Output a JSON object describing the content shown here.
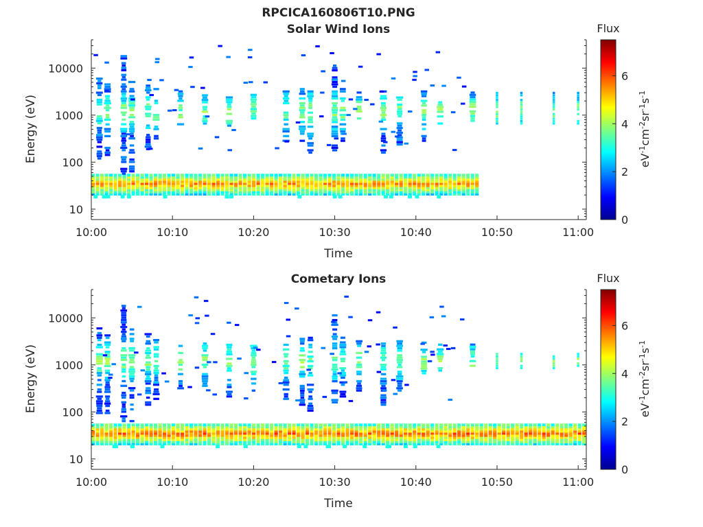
{
  "figure_title": "RPCICA160806T10.PNG",
  "chart_data": [
    {
      "type": "heatmap",
      "title": "Solar Wind Ions",
      "xlabel": "Time",
      "ylabel": "Energy (eV)",
      "x_ticks": [
        "10:00",
        "10:10",
        "10:20",
        "10:30",
        "10:40",
        "10:50",
        "11:00"
      ],
      "y_ticks": [
        "10",
        "100",
        "1000",
        "10000"
      ],
      "y_scale": "log",
      "y_range_eV": [
        6,
        40000
      ],
      "x_range": [
        "10:00",
        "11:01"
      ],
      "colorbar": {
        "title": "Flux",
        "unit": "eV⁻¹cm⁻²sr⁻¹s⁻¹",
        "ticks": [
          "0",
          "2",
          "4",
          "6"
        ],
        "range": [
          0,
          7.5
        ],
        "colormap": "jet"
      },
      "features": {
        "low_energy_band_eV": [
          25,
          55
        ],
        "low_energy_band_flux": 5.5,
        "bursts": [
          {
            "t": "10:01",
            "top": 7000,
            "bottom": 100
          },
          {
            "t": "10:02",
            "top": 5000,
            "bottom": 150
          },
          {
            "t": "10:04",
            "top": 20000,
            "bottom": 60
          },
          {
            "t": "10:05",
            "top": 6000,
            "bottom": 60
          },
          {
            "t": "10:07",
            "top": 5000,
            "bottom": 200
          },
          {
            "t": "10:08",
            "top": 4000,
            "bottom": 300
          },
          {
            "t": "10:11",
            "top": 3500,
            "bottom": 600
          },
          {
            "t": "10:14",
            "top": 3000,
            "bottom": 700
          },
          {
            "t": "10:17",
            "top": 3000,
            "bottom": 500
          },
          {
            "t": "10:20",
            "top": 3000,
            "bottom": 800
          },
          {
            "t": "10:24",
            "top": 3500,
            "bottom": 300
          },
          {
            "t": "10:26",
            "top": 4000,
            "bottom": 300
          },
          {
            "t": "10:27",
            "top": 4000,
            "bottom": 150
          },
          {
            "t": "10:30",
            "top": 12000,
            "bottom": 150
          },
          {
            "t": "10:31",
            "top": 4000,
            "bottom": 300
          },
          {
            "t": "10:33",
            "top": 3500,
            "bottom": 800
          },
          {
            "t": "10:36",
            "top": 3500,
            "bottom": 150
          },
          {
            "t": "10:38",
            "top": 3500,
            "bottom": 250
          },
          {
            "t": "10:41",
            "top": 3500,
            "bottom": 300
          },
          {
            "t": "10:43",
            "top": 3000,
            "bottom": 700
          },
          {
            "t": "10:47",
            "top": 3500,
            "bottom": 800
          },
          {
            "t": "10:50",
            "top": 3500,
            "bottom": 700
          },
          {
            "t": "10:53",
            "top": 3500,
            "bottom": 700
          },
          {
            "t": "10:57",
            "top": 3500,
            "bottom": 700
          },
          {
            "t": "11:00",
            "top": 3500,
            "bottom": 700
          }
        ]
      }
    },
    {
      "type": "heatmap",
      "title": "Cometary Ions",
      "xlabel": "Time",
      "ylabel": "Energy (eV)",
      "x_ticks": [
        "10:00",
        "10:10",
        "10:20",
        "10:30",
        "10:40",
        "10:50",
        "11:00"
      ],
      "y_ticks": [
        "10",
        "100",
        "1000",
        "10000"
      ],
      "y_scale": "log",
      "y_range_eV": [
        6,
        40000
      ],
      "x_range": [
        "10:00",
        "11:01"
      ],
      "colorbar": {
        "title": "Flux",
        "unit": "eV⁻¹cm⁻²sr⁻¹s⁻¹",
        "ticks": [
          "0",
          "2",
          "4",
          "6"
        ],
        "range": [
          0,
          7.5
        ],
        "colormap": "jet"
      },
      "features": {
        "low_energy_band_eV": [
          25,
          55
        ],
        "low_energy_band_flux": 5.8,
        "bursts": [
          {
            "t": "10:01",
            "top": 7000,
            "bottom": 100
          },
          {
            "t": "10:02",
            "top": 5000,
            "bottom": 100
          },
          {
            "t": "10:04",
            "top": 20000,
            "bottom": 60
          },
          {
            "t": "10:05",
            "top": 6000,
            "bottom": 60
          },
          {
            "t": "10:07",
            "top": 5000,
            "bottom": 150
          },
          {
            "t": "10:08",
            "top": 4000,
            "bottom": 200
          },
          {
            "t": "10:11",
            "top": 3500,
            "bottom": 300
          },
          {
            "t": "10:14",
            "top": 3000,
            "bottom": 300
          },
          {
            "t": "10:17",
            "top": 3000,
            "bottom": 200
          },
          {
            "t": "10:20",
            "top": 3000,
            "bottom": 300
          },
          {
            "t": "10:24",
            "top": 3500,
            "bottom": 200
          },
          {
            "t": "10:26",
            "top": 4000,
            "bottom": 150
          },
          {
            "t": "10:27",
            "top": 4000,
            "bottom": 100
          },
          {
            "t": "10:30",
            "top": 12000,
            "bottom": 150
          },
          {
            "t": "10:31",
            "top": 4000,
            "bottom": 200
          },
          {
            "t": "10:33",
            "top": 3500,
            "bottom": 300
          },
          {
            "t": "10:36",
            "top": 3500,
            "bottom": 150
          },
          {
            "t": "10:38",
            "top": 3500,
            "bottom": 300
          },
          {
            "t": "10:41",
            "top": 3500,
            "bottom": 700
          },
          {
            "t": "10:43",
            "top": 3000,
            "bottom": 800
          },
          {
            "t": "10:47",
            "top": 3500,
            "bottom": 900
          },
          {
            "t": "10:50",
            "top": 2000,
            "bottom": 900
          },
          {
            "t": "10:53",
            "top": 2000,
            "bottom": 900
          },
          {
            "t": "10:57",
            "top": 2000,
            "bottom": 900
          },
          {
            "t": "11:00",
            "top": 2000,
            "bottom": 900
          }
        ]
      }
    }
  ]
}
